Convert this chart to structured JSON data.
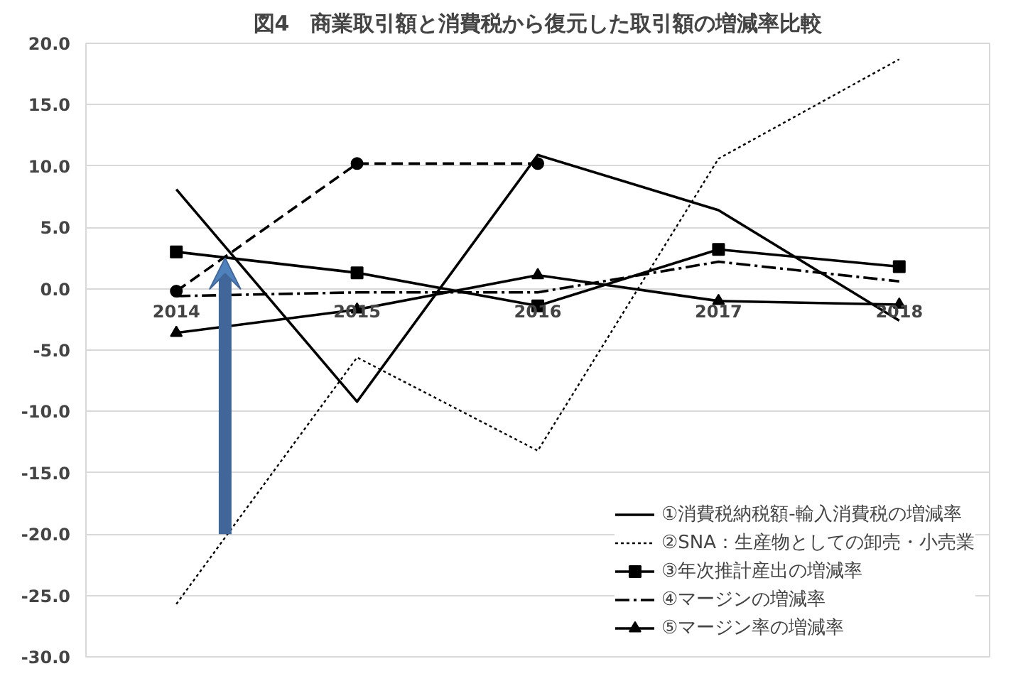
{
  "chart_data": {
    "type": "line",
    "title": "図4　商業取引額と消費税から復元した取引額の増減率比較",
    "categories": [
      "2014",
      "2015",
      "2016",
      "2017",
      "2018"
    ],
    "series": [
      {
        "name": "①消費税納税額-輸入消費税の増減率",
        "color": "#000000",
        "line_style": "solid",
        "marker": "none",
        "values": [
          8.1,
          -9.2,
          10.9,
          6.4,
          -2.6
        ]
      },
      {
        "name": "②SNA：生産物としての卸売・小売業",
        "color": "#000000",
        "line_style": "dotted",
        "marker": "none",
        "values": [
          -25.7,
          -5.6,
          -13.2,
          10.6,
          18.7
        ]
      },
      {
        "name": "③年次推計産出の増減率",
        "color": "#000000",
        "line_style": "solid",
        "marker": "square",
        "values": [
          3.0,
          1.3,
          -1.4,
          3.2,
          1.8
        ]
      },
      {
        "name": "④マージンの増減率",
        "color": "#000000",
        "line_style": "dashdot",
        "marker": "none",
        "values": [
          -0.6,
          -0.3,
          -0.3,
          2.2,
          0.6
        ]
      },
      {
        "name": "⑤マージン率の増減率",
        "color": "#000000",
        "line_style": "solid",
        "marker": "triangle",
        "values": [
          -3.6,
          -1.7,
          1.1,
          -1.0,
          -1.3
        ]
      },
      {
        "color": "#000000",
        "line_style": "dashed",
        "marker": "circle",
        "values": [
          -0.2,
          10.2,
          10.2,
          null,
          null
        ]
      }
    ],
    "ylim": [
      -30,
      20
    ],
    "yticks": [
      {
        "value": -30,
        "label": "-30.0"
      },
      {
        "value": -25,
        "label": "-25.0"
      },
      {
        "value": -20,
        "label": "-20.0"
      },
      {
        "value": -15,
        "label": "-15.0"
      },
      {
        "value": -10,
        "label": "-10.0"
      },
      {
        "value": -5,
        "label": "-5.0"
      },
      {
        "value": 0,
        "label": "0.0"
      },
      {
        "value": 5,
        "label": "5.0"
      },
      {
        "value": 10,
        "label": "10.0"
      },
      {
        "value": 15,
        "label": "15.0"
      },
      {
        "value": 20,
        "label": "20.0"
      }
    ],
    "grid": "y",
    "legend": "bottom right"
  }
}
